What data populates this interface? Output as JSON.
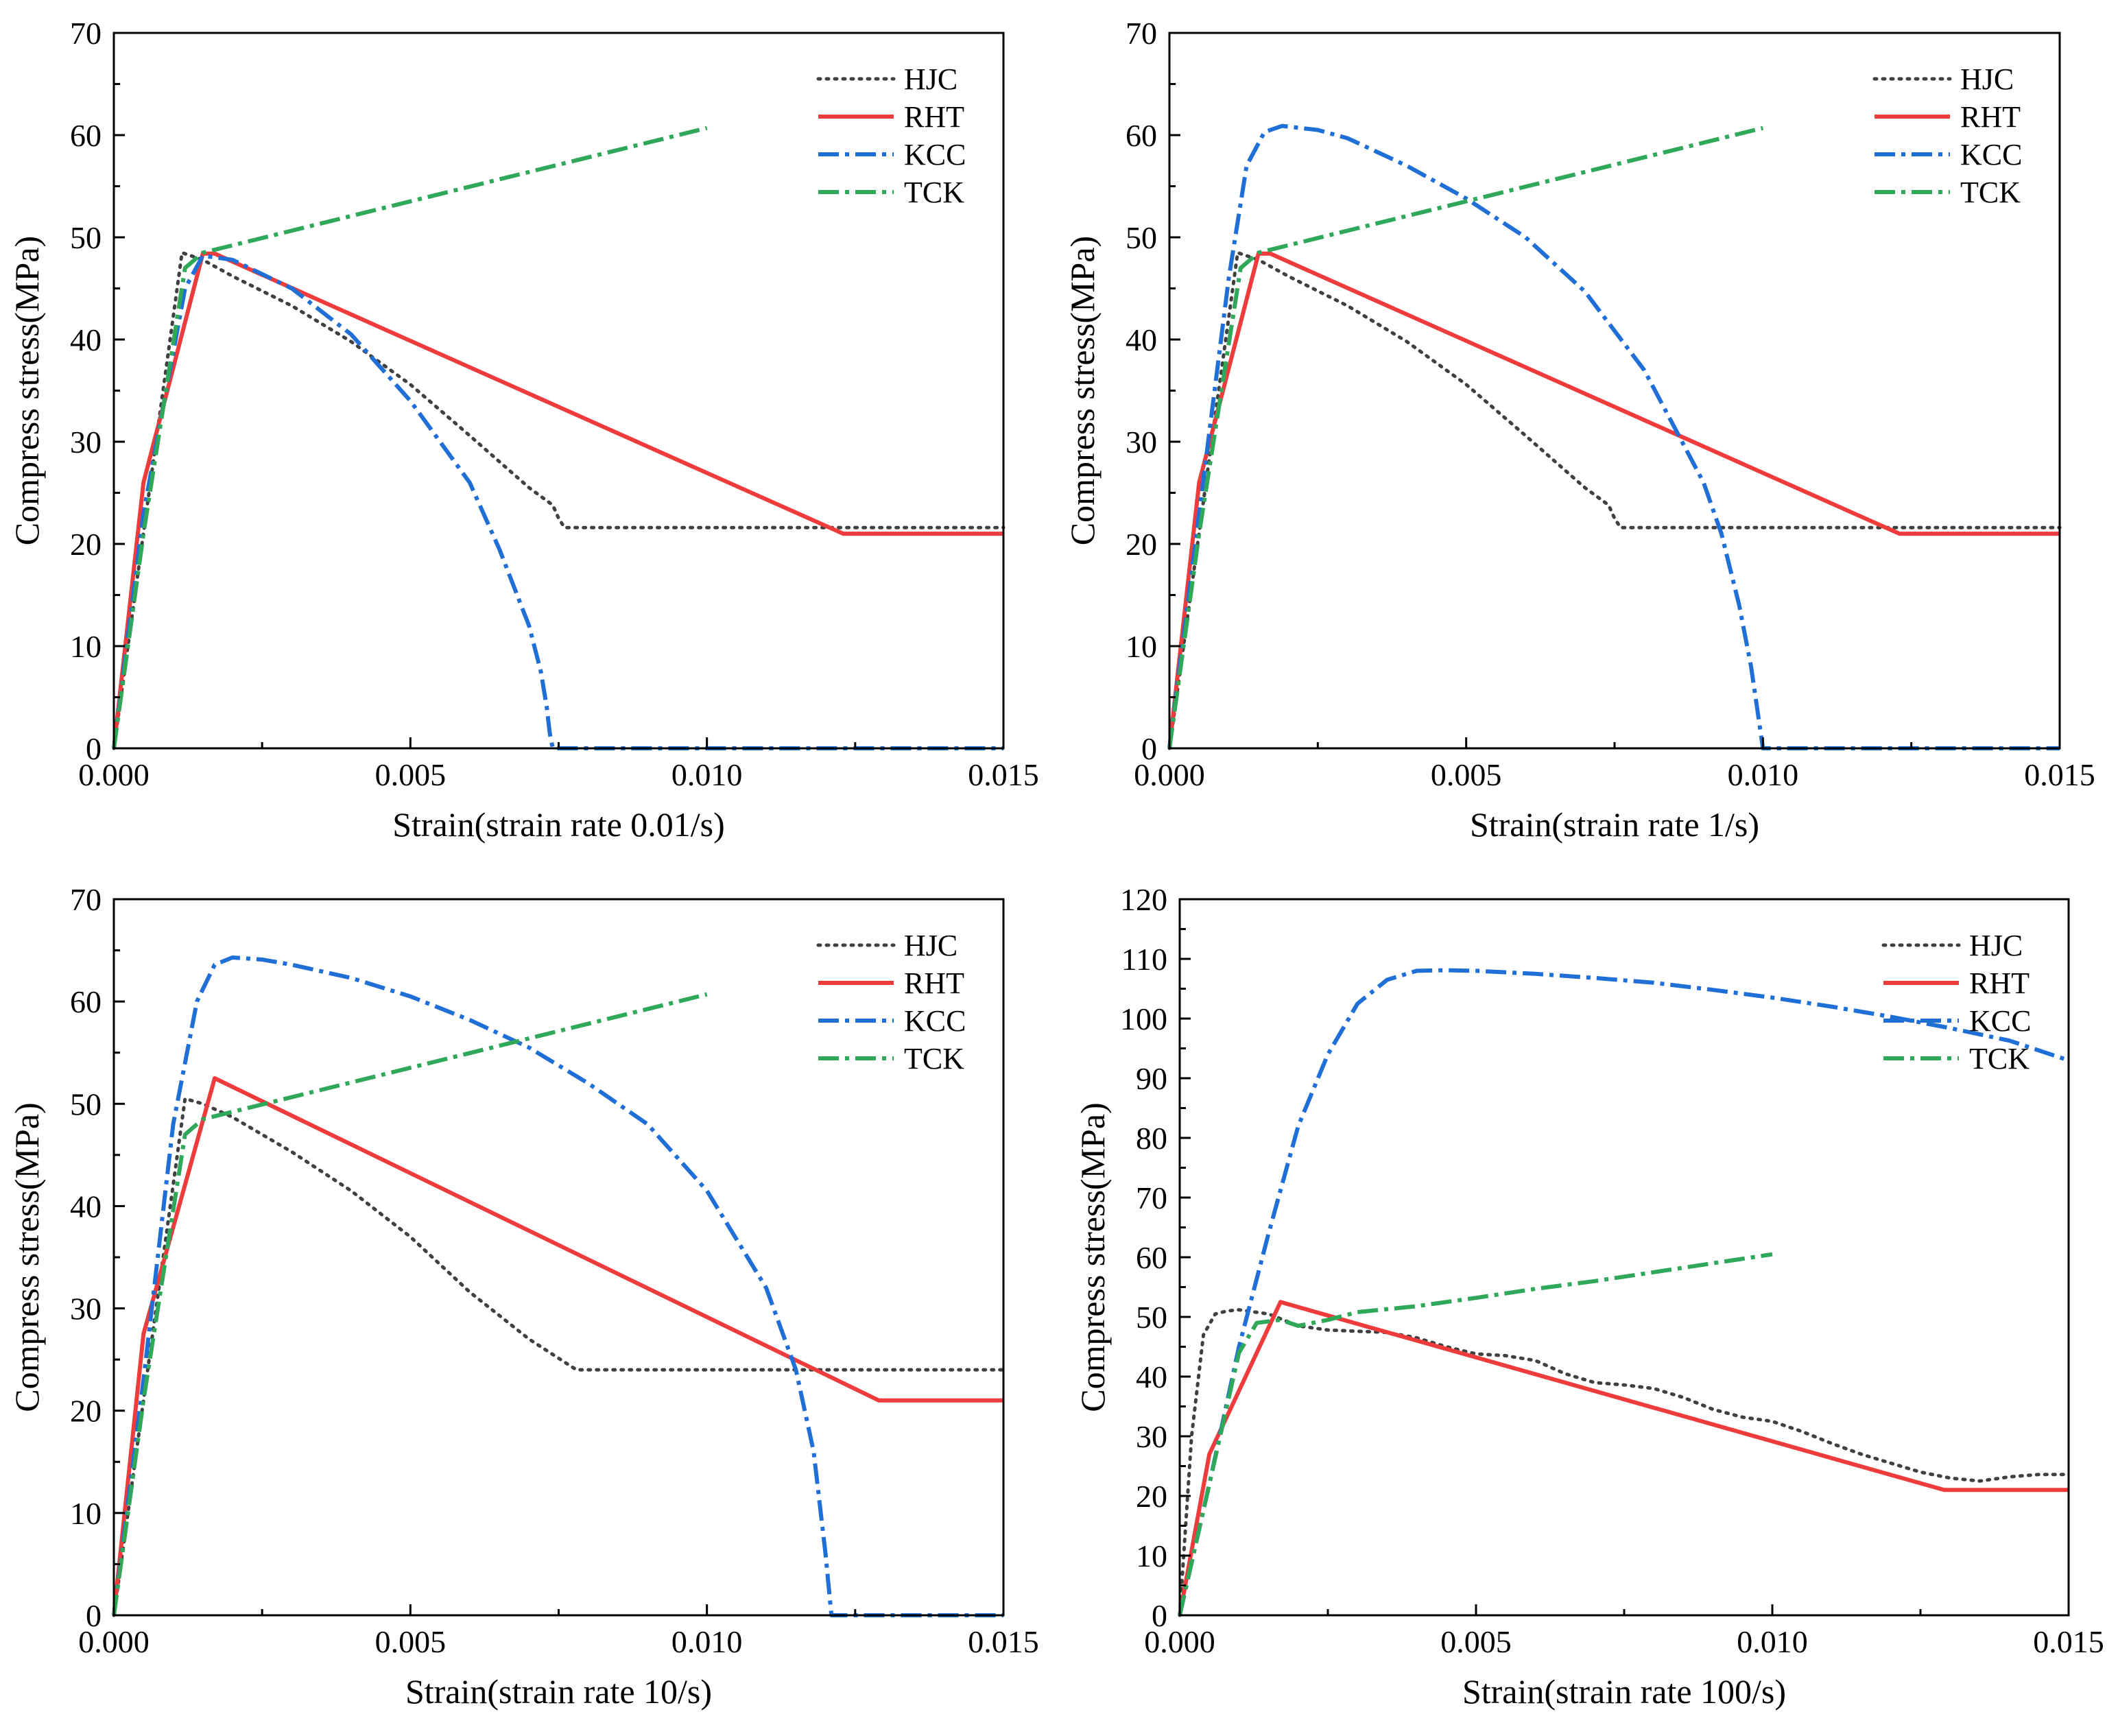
{
  "figure": {
    "panel_count": 4
  },
  "styles": {
    "HJC": {
      "color": "#404040",
      "dash": "dot"
    },
    "RHT": {
      "color": "#ee3b3b",
      "dash": "solid"
    },
    "KCC": {
      "color": "#1f6fd6",
      "dash": "dashdot"
    },
    "TCK": {
      "color": "#2fa85a",
      "dash": "dashdot"
    }
  },
  "chart_data": [
    {
      "type": "line",
      "title": "",
      "xlabel": "Strain(strain rate 0.01/s)",
      "ylabel": "Compress stress(MPa)",
      "xlim": [
        0,
        0.015
      ],
      "ylim": [
        0,
        70
      ],
      "xticks": [
        0,
        0.005,
        0.01,
        0.015
      ],
      "xtick_labels": [
        "0.000",
        "0.005",
        "0.010",
        "0.015"
      ],
      "yticks": [
        0,
        10,
        20,
        30,
        40,
        50,
        60,
        70
      ],
      "ytick_labels": [
        "0",
        "10",
        "20",
        "30",
        "40",
        "50",
        "60",
        "70"
      ],
      "legend": {
        "position": "top-right",
        "entries": [
          "HJC",
          "RHT",
          "KCC",
          "TCK"
        ]
      },
      "series": [
        {
          "name": "HJC",
          "x": [
            0,
            0.00115,
            0.0015,
            0.002,
            0.003,
            0.004,
            0.005,
            0.006,
            0.007,
            0.0074,
            0.0075,
            0.0076,
            0.015
          ],
          "y": [
            0,
            48.5,
            47.8,
            46.2,
            43.3,
            39.8,
            35.6,
            30.6,
            25.5,
            23.8,
            22.5,
            21.6,
            21.6
          ]
        },
        {
          "name": "RHT",
          "x": [
            0,
            0.0005,
            0.0015,
            0.0017,
            0.0123,
            0.015
          ],
          "y": [
            0,
            26,
            48.4,
            48.4,
            21,
            21
          ]
        },
        {
          "name": "KCC",
          "x": [
            0,
            0.0005,
            0.0012,
            0.0015,
            0.002,
            0.003,
            0.004,
            0.005,
            0.006,
            0.0065,
            0.007,
            0.0072,
            0.0073,
            0.00735,
            0.0074,
            0.015
          ],
          "y": [
            0,
            23,
            45,
            48.2,
            47.8,
            45,
            40.5,
            34,
            26,
            19.5,
            12,
            7.5,
            4,
            1.5,
            0,
            0
          ]
        },
        {
          "name": "TCK",
          "x": [
            0,
            0.0005,
            0.0012,
            0.0015,
            0.01
          ],
          "y": [
            0,
            21,
            47,
            48.5,
            60.7
          ]
        }
      ]
    },
    {
      "type": "line",
      "title": "",
      "xlabel": "Strain(strain rate 1/s)",
      "ylabel": "Compress stress(MPa)",
      "xlim": [
        0,
        0.015
      ],
      "ylim": [
        0,
        70
      ],
      "xticks": [
        0,
        0.005,
        0.01,
        0.015
      ],
      "xtick_labels": [
        "0.000",
        "0.005",
        "0.010",
        "0.015"
      ],
      "yticks": [
        0,
        10,
        20,
        30,
        40,
        50,
        60,
        70
      ],
      "ytick_labels": [
        "0",
        "10",
        "20",
        "30",
        "40",
        "50",
        "60",
        "70"
      ],
      "legend": {
        "position": "top-right",
        "entries": [
          "HJC",
          "RHT",
          "KCC",
          "TCK"
        ]
      },
      "series": [
        {
          "name": "HJC",
          "x": [
            0,
            0.00115,
            0.0015,
            0.002,
            0.003,
            0.004,
            0.005,
            0.006,
            0.007,
            0.0074,
            0.0075,
            0.0076,
            0.015
          ],
          "y": [
            0,
            48.5,
            47.8,
            46.2,
            43.3,
            39.8,
            35.6,
            30.6,
            25.5,
            23.8,
            22.5,
            21.6,
            21.6
          ]
        },
        {
          "name": "RHT",
          "x": [
            0,
            0.0005,
            0.0015,
            0.0017,
            0.0123,
            0.015
          ],
          "y": [
            0,
            26,
            48.4,
            48.4,
            21,
            21
          ]
        },
        {
          "name": "KCC",
          "x": [
            0,
            0.0005,
            0.001,
            0.0013,
            0.0016,
            0.0019,
            0.0025,
            0.003,
            0.004,
            0.005,
            0.006,
            0.007,
            0.008,
            0.009,
            0.0093,
            0.0096,
            0.0098,
            0.0099,
            0.01,
            0.015
          ],
          "y": [
            0,
            23,
            46,
            57,
            60.3,
            60.9,
            60.5,
            59.7,
            57,
            53.8,
            50,
            44.7,
            37,
            26,
            21,
            14,
            8,
            4,
            0,
            0
          ]
        },
        {
          "name": "TCK",
          "x": [
            0,
            0.0005,
            0.0012,
            0.0015,
            0.01
          ],
          "y": [
            0,
            21,
            47,
            48.5,
            60.7
          ]
        }
      ]
    },
    {
      "type": "line",
      "title": "",
      "xlabel": "Strain(strain rate 10/s)",
      "ylabel": "Compress stress(MPa)",
      "xlim": [
        0,
        0.015
      ],
      "ylim": [
        0,
        70
      ],
      "xticks": [
        0,
        0.005,
        0.01,
        0.015
      ],
      "xtick_labels": [
        "0.000",
        "0.005",
        "0.010",
        "0.015"
      ],
      "yticks": [
        0,
        10,
        20,
        30,
        40,
        50,
        60,
        70
      ],
      "ytick_labels": [
        "0",
        "10",
        "20",
        "30",
        "40",
        "50",
        "60",
        "70"
      ],
      "legend": {
        "position": "top-right",
        "entries": [
          "HJC",
          "RHT",
          "KCC",
          "TCK"
        ]
      },
      "series": [
        {
          "name": "HJC",
          "x": [
            0,
            0.0012,
            0.0015,
            0.002,
            0.003,
            0.004,
            0.005,
            0.006,
            0.007,
            0.0078,
            0.015
          ],
          "y": [
            0,
            50.5,
            50,
            48.7,
            45.3,
            41.5,
            37,
            31.6,
            27,
            24,
            24
          ]
        },
        {
          "name": "RHT",
          "x": [
            0,
            0.0005,
            0.0017,
            0.0129,
            0.015
          ],
          "y": [
            0,
            27.5,
            52.5,
            21,
            21
          ]
        },
        {
          "name": "KCC",
          "x": [
            0,
            0.0005,
            0.001,
            0.0014,
            0.0017,
            0.002,
            0.0025,
            0.003,
            0.004,
            0.005,
            0.006,
            0.007,
            0.008,
            0.009,
            0.01,
            0.011,
            0.0115,
            0.0118,
            0.012,
            0.0121,
            0.015
          ],
          "y": [
            0,
            23,
            48,
            60,
            63.6,
            64.3,
            64.1,
            63.6,
            62.3,
            60.5,
            58.2,
            55.5,
            52,
            48,
            41.5,
            32,
            24,
            16,
            6,
            0,
            0
          ]
        },
        {
          "name": "TCK",
          "x": [
            0,
            0.0005,
            0.0012,
            0.0015,
            0.01
          ],
          "y": [
            0,
            21,
            47,
            48.5,
            60.7
          ]
        }
      ]
    },
    {
      "type": "line",
      "title": "",
      "xlabel": "Strain(strain rate 100/s)",
      "ylabel": "Compress stress(MPa)",
      "xlim": [
        0,
        0.015
      ],
      "ylim": [
        0,
        120
      ],
      "xticks": [
        0,
        0.005,
        0.01,
        0.015
      ],
      "xtick_labels": [
        "0.000",
        "0.005",
        "0.010",
        "0.015"
      ],
      "yticks": [
        0,
        10,
        20,
        30,
        40,
        50,
        60,
        70,
        80,
        90,
        100,
        110,
        120
      ],
      "ytick_labels": [
        "0",
        "10",
        "20",
        "30",
        "40",
        "50",
        "60",
        "70",
        "80",
        "90",
        "100",
        "110",
        "120"
      ],
      "legend": {
        "position": "top-right",
        "entries": [
          "HJC",
          "RHT",
          "KCC",
          "TCK"
        ]
      },
      "series": [
        {
          "name": "HJC",
          "x": [
            0,
            0.0002,
            0.0004,
            0.0006,
            0.0008,
            0.001,
            0.0015,
            0.002,
            0.0025,
            0.003,
            0.0035,
            0.004,
            0.0045,
            0.005,
            0.0055,
            0.006,
            0.0065,
            0.007,
            0.0075,
            0.008,
            0.0085,
            0.009,
            0.0095,
            0.01,
            0.0105,
            0.011,
            0.0115,
            0.012,
            0.0125,
            0.013,
            0.0135,
            0.014,
            0.0145,
            0.015
          ],
          "y": [
            0,
            30,
            47,
            50.5,
            51,
            51.2,
            50.5,
            48.5,
            47.8,
            47.6,
            47.4,
            46.5,
            45,
            43.8,
            43.5,
            42.7,
            40.5,
            39,
            38.6,
            38,
            36.5,
            34.5,
            33.2,
            32.5,
            30.8,
            28.8,
            27,
            25.5,
            24,
            23,
            22.5,
            23.2,
            23.6,
            23.6
          ]
        },
        {
          "name": "RHT",
          "x": [
            0,
            0.0005,
            0.0017,
            0.0129,
            0.015
          ],
          "y": [
            0,
            27,
            52.5,
            21,
            21
          ]
        },
        {
          "name": "KCC",
          "x": [
            0,
            0.0005,
            0.001,
            0.0015,
            0.002,
            0.0025,
            0.003,
            0.0035,
            0.004,
            0.0045,
            0.005,
            0.006,
            0.007,
            0.008,
            0.009,
            0.01,
            0.011,
            0.012,
            0.013,
            0.014,
            0.015
          ],
          "y": [
            0,
            22,
            45,
            64,
            82,
            94,
            102.5,
            106.5,
            108,
            108.1,
            108,
            107.5,
            106.8,
            106,
            104.8,
            103.5,
            102,
            100.3,
            98.4,
            96.3,
            93
          ]
        },
        {
          "name": "TCK",
          "x": [
            0,
            0.0005,
            0.001,
            0.0013,
            0.0017,
            0.002,
            0.0025,
            0.003,
            0.004,
            0.005,
            0.006,
            0.007,
            0.008,
            0.009,
            0.01
          ],
          "y": [
            0,
            22,
            44,
            49,
            49.5,
            48.5,
            49.5,
            50.8,
            51.8,
            53.2,
            54.7,
            56,
            57.5,
            59,
            60.5
          ]
        }
      ]
    }
  ]
}
